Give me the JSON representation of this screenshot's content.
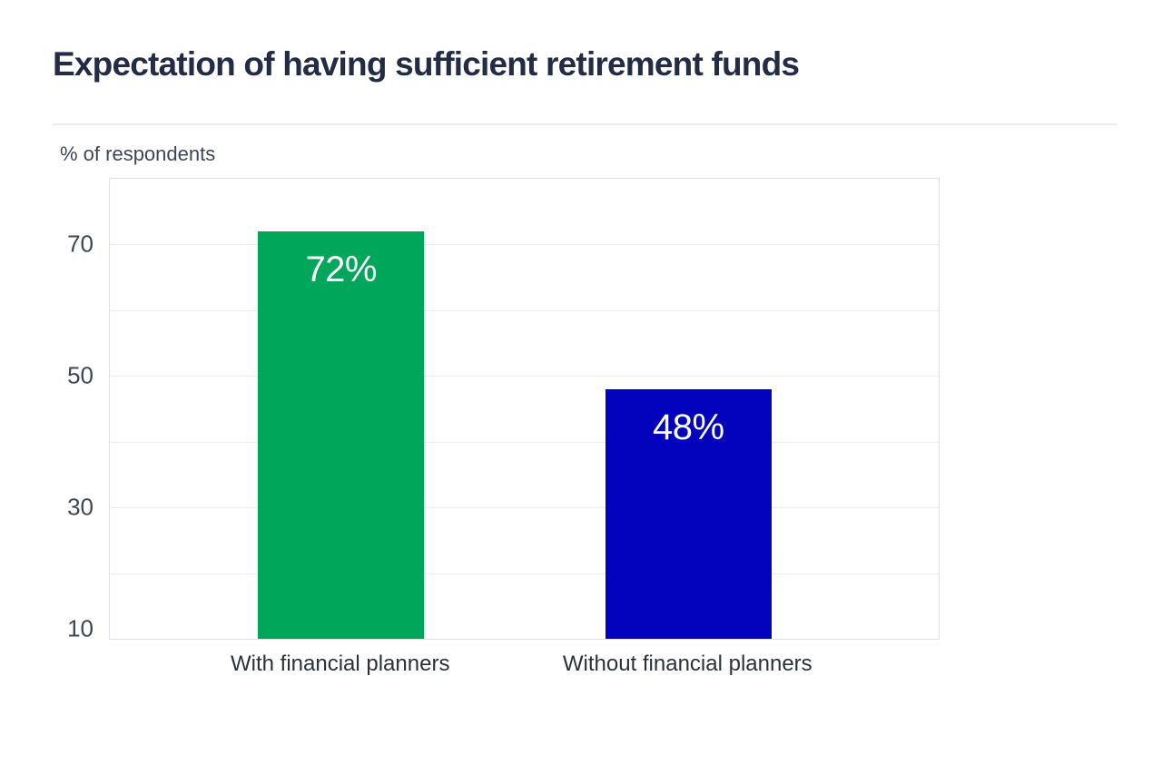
{
  "header": {
    "title": "Expectation of having sufficient retirement funds"
  },
  "chart_data": {
    "type": "bar",
    "title": "Expectation of having sufficient retirement funds",
    "xlabel": "",
    "ylabel": "% of respondents",
    "categories": [
      "With financial planners",
      "Without financial planners"
    ],
    "values": [
      72,
      48
    ],
    "value_labels": [
      "72%",
      "48%"
    ],
    "bar_colors": [
      "#00a65a",
      "#0303be"
    ],
    "ylim": [
      10,
      80
    ],
    "ytick_labels": [
      70,
      50,
      30,
      10
    ],
    "gridline_values": [
      70,
      60,
      50,
      40,
      30,
      20
    ],
    "grid": true,
    "legend": false
  },
  "colors": {
    "title_text": "#232c44",
    "axis_text": "#3e4657",
    "category_text": "#2b303c",
    "bar_label_text": "#ffffff",
    "gridline": "#ececee",
    "plot_border": "#dfe1e5",
    "divider": "#ededed",
    "background": "#ffffff"
  }
}
